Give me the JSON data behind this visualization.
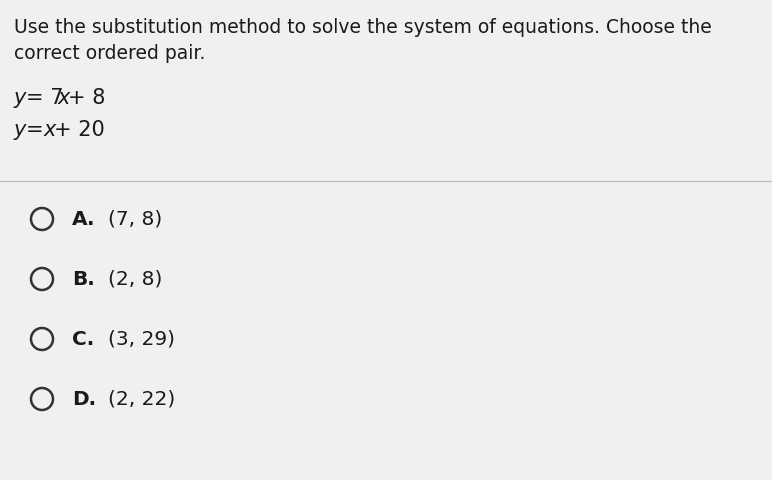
{
  "background_color": "#f0f0f0",
  "instruction_line1": "Use the substitution method to solve the system of equations. Choose the",
  "instruction_line2": "correct ordered pair.",
  "eq1": "y = 7x + 8",
  "eq2": "y = x + 20",
  "choices": [
    {
      "letter": "A.",
      "text": "(7, 8)"
    },
    {
      "letter": "B.",
      "text": "(2, 8)"
    },
    {
      "letter": "C.",
      "text": "(3, 29)"
    },
    {
      "letter": "D.",
      "text": "(2, 22)"
    }
  ],
  "instruction_fontsize": 13.5,
  "eq_fontsize": 15,
  "choice_fontsize": 14.5,
  "text_color": "#1a1a1a",
  "divider_color": "#bbbbbb",
  "circle_color": "#333333",
  "circle_lw": 1.8
}
